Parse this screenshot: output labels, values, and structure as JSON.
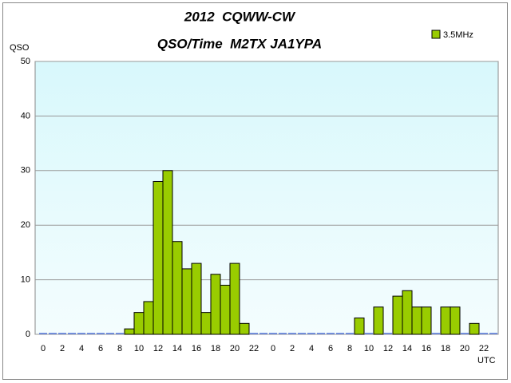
{
  "chart_data": {
    "type": "bar",
    "title": "2012  CQWW-CW",
    "subtitle": "QSO/Time  M2TX JA1YPA",
    "y_label": "QSO",
    "x_label": "UTC",
    "categories": [
      "0",
      null,
      "2",
      null,
      "4",
      null,
      "6",
      null,
      "8",
      null,
      "10",
      null,
      "12",
      null,
      "14",
      null,
      "16",
      null,
      "18",
      null,
      "20",
      null,
      "22",
      null,
      "0",
      null,
      "2",
      null,
      "4",
      null,
      "6",
      null,
      "8",
      null,
      "10",
      null,
      "12",
      null,
      "14",
      null,
      "16",
      null,
      "18",
      null,
      "20",
      null,
      "22",
      null
    ],
    "series": [
      {
        "name": "3.5MHz",
        "color": "#99cc00",
        "values": [
          0,
          0,
          0,
          0,
          0,
          0,
          0,
          0,
          0,
          1,
          4,
          6,
          28,
          30,
          17,
          12,
          13,
          4,
          11,
          9,
          13,
          2,
          0,
          0,
          0,
          0,
          0,
          0,
          0,
          0,
          0,
          0,
          0,
          3,
          0,
          5,
          0,
          7,
          8,
          5,
          5,
          0,
          5,
          5,
          0,
          2,
          0,
          0
        ]
      }
    ],
    "ylim": [
      0,
      50
    ],
    "yticks": [
      0,
      10,
      20,
      30,
      40,
      50
    ],
    "grid": true,
    "legend": "top-right"
  }
}
